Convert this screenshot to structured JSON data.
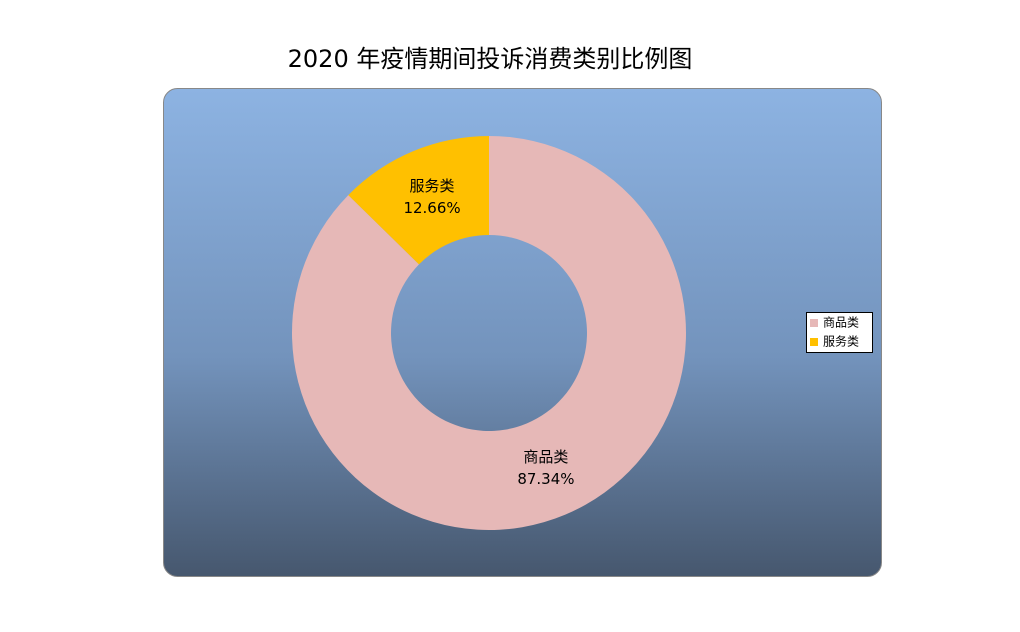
{
  "chart_data": {
    "type": "donut",
    "title": "2020 年疫情期间投诉消费类别比例图",
    "categories": [
      "商品类",
      "服务类"
    ],
    "values": [
      87.34,
      12.66
    ],
    "value_labels": [
      "87.34%",
      "12.66%"
    ],
    "colors": [
      "#e6b8b7",
      "#ffc000"
    ],
    "legend": "right"
  }
}
